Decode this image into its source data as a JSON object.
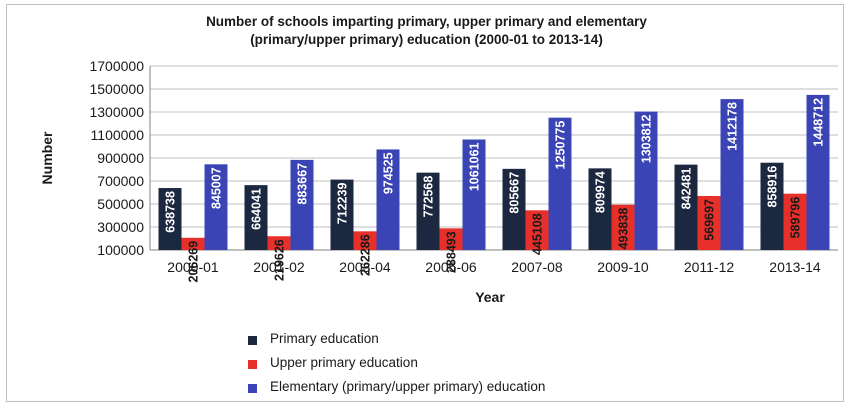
{
  "chart_data": {
    "type": "bar",
    "title": "Number of schools imparting primary, upper primary and elementary",
    "subtitle": "(primary/upper primary) education  (2000-01 to 2013-14)",
    "xlabel": "Year",
    "ylabel": "Number",
    "ylim": [
      100000,
      1700000
    ],
    "yticks": [
      1700000,
      1500000,
      1300000,
      1100000,
      900000,
      700000,
      500000,
      300000,
      100000
    ],
    "grid": true,
    "legend_position": "bottom",
    "categories": [
      "2000-01",
      "2001-02",
      "2003-04",
      "2005-06",
      "2007-08",
      "2009-10",
      "2011-12",
      "2013-14"
    ],
    "series": [
      {
        "name": "Primary education",
        "color": "#1c2740",
        "values": [
          638738,
          664041,
          712239,
          772568,
          805667,
          809974,
          842481,
          858916
        ]
      },
      {
        "name": "Upper primary education",
        "color": "#e8302a",
        "values": [
          206269,
          219626,
          262286,
          288493,
          445108,
          493838,
          569697,
          589796
        ]
      },
      {
        "name": "Elementary (primary/upper primary) education",
        "color": "#3a44b5",
        "values": [
          845007,
          883667,
          974525,
          1061061,
          1250775,
          1303812,
          1412178,
          1448712
        ]
      }
    ]
  }
}
